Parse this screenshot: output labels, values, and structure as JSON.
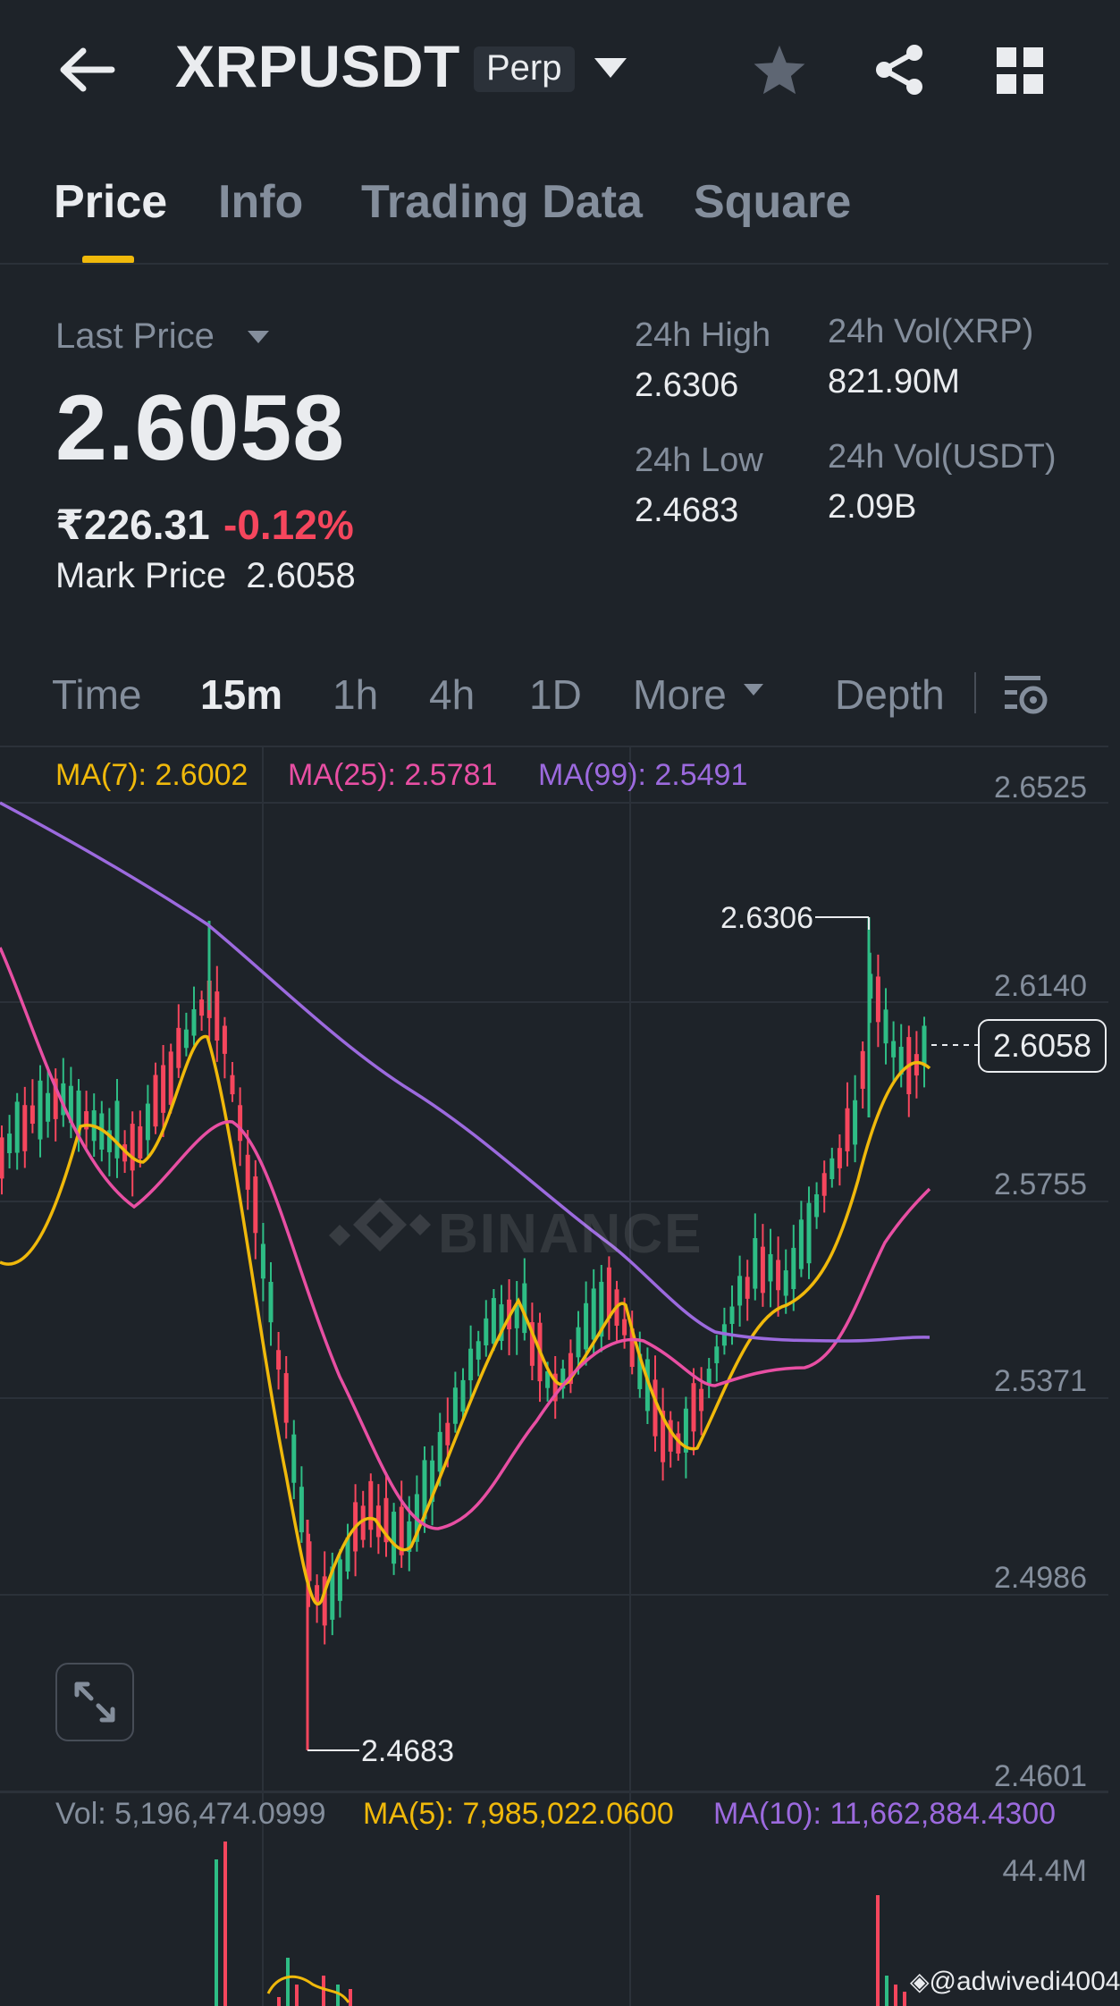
{
  "header": {
    "symbol": "XRPUSDT",
    "contract_type": "Perp",
    "icons": [
      "back-arrow-icon",
      "chevron-down-icon",
      "star-icon",
      "share-icon",
      "grid-icon"
    ]
  },
  "tabs": [
    {
      "label": "Price",
      "active": true
    },
    {
      "label": "Info",
      "active": false
    },
    {
      "label": "Trading Data",
      "active": false
    },
    {
      "label": "Square",
      "active": false
    }
  ],
  "price": {
    "last_price_label": "Last Price",
    "last_price": "2.6058",
    "inr_price": "₹226.31",
    "change": "-0.12%",
    "mark_price_label": "Mark Price",
    "mark_price": "2.6058",
    "high_label": "24h High",
    "high": "2.6306",
    "low_label": "24h Low",
    "low": "2.4683",
    "vol_xrp_label": "24h Vol(XRP)",
    "vol_xrp": "821.90M",
    "vol_usdt_label": "24h Vol(USDT)",
    "vol_usdt": "2.09B"
  },
  "intervals": {
    "items": [
      {
        "label": "Time",
        "active": false
      },
      {
        "label": "15m",
        "active": true
      },
      {
        "label": "1h",
        "active": false
      },
      {
        "label": "4h",
        "active": false
      },
      {
        "label": "1D",
        "active": false
      }
    ],
    "more_label": "More",
    "depth_label": "Depth"
  },
  "colors": {
    "background": "#1e2329",
    "up": "#2ebd85",
    "down": "#f6465d",
    "accent": "#f0b90b",
    "ma7": "#f0b90b",
    "ma25": "#e84fa3",
    "ma99": "#9c6ade"
  },
  "chart": {
    "ma7": "MA(7): 2.6002",
    "ma25": "MA(25): 2.5781",
    "ma99": "MA(99): 2.5491",
    "watermark": "BINANCE",
    "current_price": "2.6058",
    "high_marker": "2.6306",
    "low_marker": "2.4683",
    "vol_text": "Vol: 5,196,474.0999",
    "vol_ma5": "MA(5): 7,985,022.0600",
    "vol_ma10": "MA(10): 11,662,884.4300",
    "vol_max": "44.4M",
    "credit": "@adwivedi4004"
  },
  "chart_data": {
    "type": "candlestick",
    "y_ticks": [
      "2.6525",
      "2.6140",
      "2.5755",
      "2.5371",
      "2.4986",
      "2.4601"
    ],
    "ylim": [
      2.4601,
      2.6525
    ],
    "series": [
      {
        "name": "MA(7)",
        "last": 2.6002
      },
      {
        "name": "MA(25)",
        "last": 2.5781
      },
      {
        "name": "MA(99)",
        "last": 2.5491
      }
    ],
    "high": 2.6306,
    "low": 2.4683,
    "last": 2.6058
  }
}
